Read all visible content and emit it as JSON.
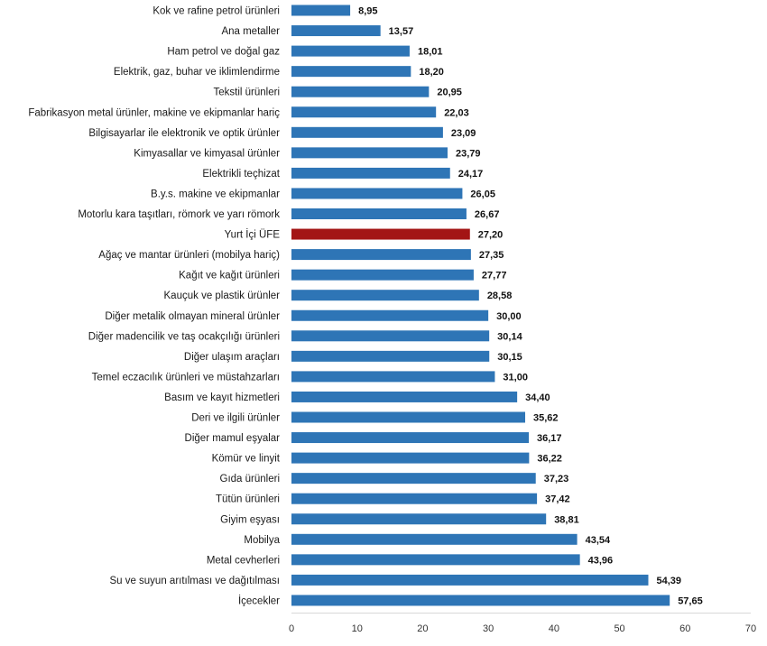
{
  "chart_data": {
    "type": "bar",
    "orientation": "horizontal",
    "categories": [
      "Kok ve rafine petrol ürünleri",
      "Ana metaller",
      "Ham petrol ve doğal gaz",
      "Elektrik, gaz, buhar ve iklimlendirme",
      "Tekstil ürünleri",
      "Fabrikasyon metal ürünler, makine ve ekipmanlar hariç",
      "Bilgisayarlar ile elektronik ve optik ürünler",
      "Kimyasallar ve kimyasal ürünler",
      "Elektrikli teçhizat",
      "B.y.s. makine ve ekipmanlar",
      "Motorlu kara taşıtları, römork ve yarı römork",
      "Yurt İçi ÜFE",
      "Ağaç ve mantar ürünleri (mobilya hariç)",
      "Kağıt ve kağıt ürünleri",
      "Kauçuk ve plastik ürünler",
      "Diğer metalik olmayan mineral ürünler",
      "Diğer madencilik ve taş ocakçılığı ürünleri",
      "Diğer ulaşım araçları",
      "Temel eczacılık ürünleri ve müstahzarları",
      "Basım ve kayıt hizmetleri",
      "Deri ve ilgili ürünler",
      "Diğer mamul eşyalar",
      "Kömür ve linyit",
      "Gıda ürünleri",
      "Tütün ürünleri",
      "Giyim eşyası",
      "Mobilya",
      "Metal cevherleri",
      "Su ve suyun arıtılması ve dağıtılması",
      "İçecekler"
    ],
    "values": [
      8.95,
      13.57,
      18.01,
      18.2,
      20.95,
      22.03,
      23.09,
      23.79,
      24.17,
      26.05,
      26.67,
      27.2,
      27.35,
      27.77,
      28.58,
      30.0,
      30.14,
      30.15,
      31.0,
      34.4,
      35.62,
      36.17,
      36.22,
      37.23,
      37.42,
      38.81,
      43.54,
      43.96,
      54.39,
      57.65
    ],
    "value_labels": [
      "8,95",
      "13,57",
      "18,01",
      "18,20",
      "20,95",
      "22,03",
      "23,09",
      "23,79",
      "24,17",
      "26,05",
      "26,67",
      "27,20",
      "27,35",
      "27,77",
      "28,58",
      "30,00",
      "30,14",
      "30,15",
      "31,00",
      "34,40",
      "35,62",
      "36,17",
      "36,22",
      "37,23",
      "37,42",
      "38,81",
      "43,54",
      "43,96",
      "54,39",
      "57,65"
    ],
    "highlight_index": 11,
    "xlim": [
      0,
      70
    ],
    "xticks": [
      0,
      10,
      20,
      30,
      40,
      50,
      60,
      70
    ],
    "title": "",
    "xlabel": "",
    "ylabel": "",
    "grid": false,
    "colors": {
      "bar": "#2e75b6",
      "highlight": "#a31515"
    }
  }
}
